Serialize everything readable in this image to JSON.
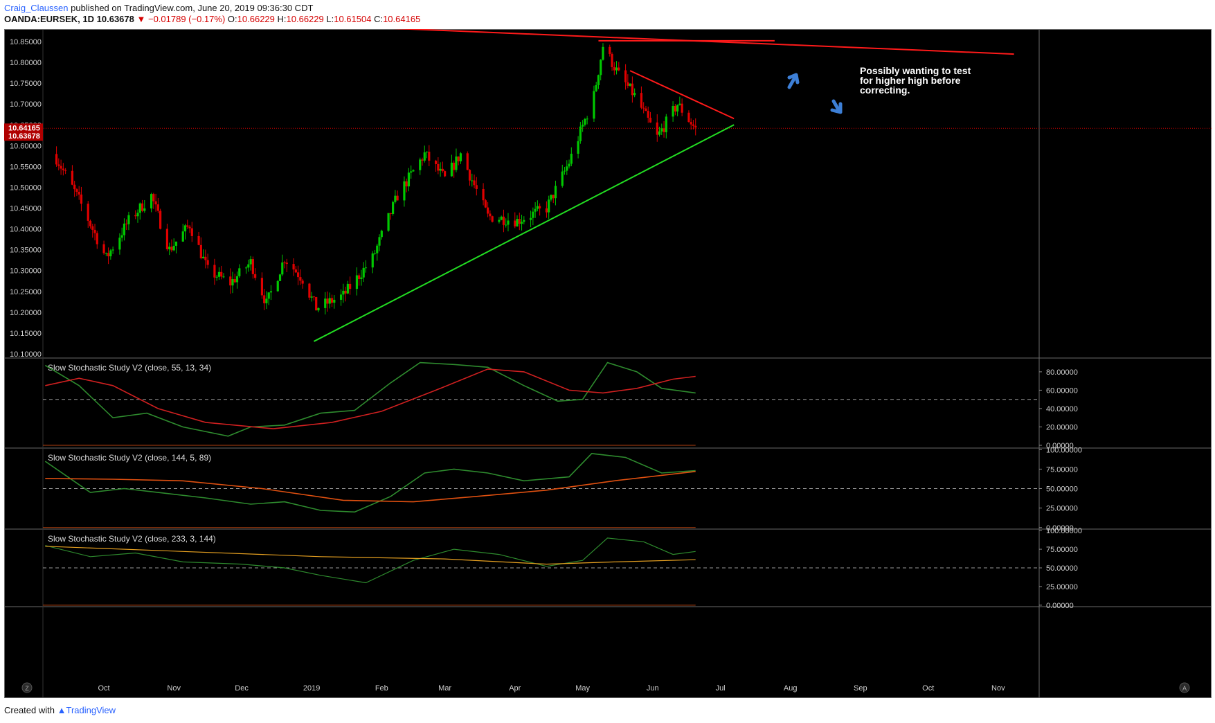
{
  "header": {
    "author": "Craig_Claussen",
    "published": "published on TradingView.com, June 20, 2019 09:36:30 CDT",
    "symbol": "OANDA:EURSEK, 1D",
    "last": "10.63678",
    "change": "▼ −0.01789 (−0.17%)",
    "o_label": "O:",
    "o": "10.66229",
    "h_label": "H:",
    "h": "10.66229",
    "l_label": "L:",
    "l": "10.61504",
    "c_label": "C:",
    "c": "10.64165"
  },
  "footer": {
    "created": "Created with",
    "brand": "TradingView"
  },
  "annotation": "Possibly wanting to test for higher high before correcting.",
  "colors": {
    "background": "#000000",
    "up": "#00c800",
    "down": "#e00000",
    "trend_support": "#22dd22",
    "trend_resistance": "#ff1a1a",
    "price_line": "#cc0000",
    "arrow": "#3d7fd6",
    "stoch_k": "#2e8b2e",
    "stoch_d": "#d02020",
    "stoch_d3": "#e6a020"
  },
  "chart_data": [
    {
      "type": "candlestick",
      "symbol": "OANDA:EURSEK",
      "interval": "1D",
      "x_labels": [
        "Oct",
        "Nov",
        "Dec",
        "2019",
        "Feb",
        "Mar",
        "Apr",
        "May",
        "Jun",
        "Jul",
        "Aug",
        "Sep",
        "Oct",
        "Nov"
      ],
      "y_ticks": [
        "10.10000",
        "10.15000",
        "10.20000",
        "10.25000",
        "10.30000",
        "10.35000",
        "10.40000",
        "10.45000",
        "10.50000",
        "10.55000",
        "10.60000",
        "10.65000",
        "10.70000",
        "10.75000",
        "10.80000",
        "10.85000"
      ],
      "ylim": [
        10.09,
        10.88
      ],
      "price_labels": [
        "10.64165",
        "10.63678"
      ],
      "close_path": [
        {
          "date": "2018-09-10",
          "close": 10.57
        },
        {
          "date": "2018-09-20",
          "close": 10.47
        },
        {
          "date": "2018-10-02",
          "close": 10.33
        },
        {
          "date": "2018-10-12",
          "close": 10.42
        },
        {
          "date": "2018-10-22",
          "close": 10.48
        },
        {
          "date": "2018-10-30",
          "close": 10.35
        },
        {
          "date": "2018-11-08",
          "close": 10.41
        },
        {
          "date": "2018-11-16",
          "close": 10.3
        },
        {
          "date": "2018-11-26",
          "close": 10.27
        },
        {
          "date": "2018-12-05",
          "close": 10.32
        },
        {
          "date": "2018-12-12",
          "close": 10.22
        },
        {
          "date": "2018-12-20",
          "close": 10.33
        },
        {
          "date": "2018-12-28",
          "close": 10.28
        },
        {
          "date": "2019-01-03",
          "close": 10.21
        },
        {
          "date": "2019-01-15",
          "close": 10.24
        },
        {
          "date": "2019-01-28",
          "close": 10.33
        },
        {
          "date": "2019-02-08",
          "close": 10.48
        },
        {
          "date": "2019-02-20",
          "close": 10.58
        },
        {
          "date": "2019-03-01",
          "close": 10.52
        },
        {
          "date": "2019-03-08",
          "close": 10.58
        },
        {
          "date": "2019-03-20",
          "close": 10.43
        },
        {
          "date": "2019-04-02",
          "close": 10.42
        },
        {
          "date": "2019-04-15",
          "close": 10.45
        },
        {
          "date": "2019-04-25",
          "close": 10.56
        },
        {
          "date": "2019-05-06",
          "close": 10.72
        },
        {
          "date": "2019-05-10",
          "close": 10.84
        },
        {
          "date": "2019-05-17",
          "close": 10.77
        },
        {
          "date": "2019-05-24",
          "close": 10.72
        },
        {
          "date": "2019-06-03",
          "close": 10.62
        },
        {
          "date": "2019-06-12",
          "close": 10.7
        },
        {
          "date": "2019-06-20",
          "close": 10.64
        }
      ],
      "trendlines": [
        {
          "name": "support",
          "from": {
            "date": "2019-01-02",
            "value": 10.13
          },
          "to": {
            "date": "2019-07-07",
            "value": 10.65
          }
        },
        {
          "name": "resistance",
          "from": {
            "date": "2019-05-22",
            "value": 10.78
          },
          "to": {
            "date": "2019-07-07",
            "value": 10.665
          }
        },
        {
          "name": "long-resistance",
          "from": {
            "date": "2019-01-22",
            "value": 10.885
          },
          "to": {
            "date": "2019-11-08",
            "value": 10.82
          }
        },
        {
          "name": "top-horizontal",
          "from": {
            "date": "2019-05-08",
            "value": 10.852
          },
          "to": {
            "date": "2019-07-25",
            "value": 10.852
          }
        }
      ]
    },
    {
      "type": "line",
      "title": "Slow Stochastic Study V2 (close, 55, 13, 34)",
      "y_ticks": [
        "0.00000",
        "20.00000",
        "40.00000",
        "60.00000",
        "80.00000"
      ],
      "ylim": [
        -3,
        95
      ],
      "midline": 50,
      "series": [
        {
          "role": "k",
          "points": [
            [
              "2018-09-05",
              87
            ],
            [
              "2018-09-20",
              65
            ],
            [
              "2018-10-05",
              30
            ],
            [
              "2018-10-20",
              35
            ],
            [
              "2018-11-05",
              20
            ],
            [
              "2018-11-25",
              10
            ],
            [
              "2018-12-05",
              20
            ],
            [
              "2018-12-20",
              22
            ],
            [
              "2019-01-05",
              35
            ],
            [
              "2019-01-20",
              38
            ],
            [
              "2019-02-05",
              68
            ],
            [
              "2019-02-18",
              90
            ],
            [
              "2019-03-05",
              88
            ],
            [
              "2019-03-20",
              85
            ],
            [
              "2019-04-05",
              65
            ],
            [
              "2019-04-20",
              48
            ],
            [
              "2019-05-01",
              50
            ],
            [
              "2019-05-12",
              90
            ],
            [
              "2019-05-25",
              80
            ],
            [
              "2019-06-05",
              62
            ],
            [
              "2019-06-20",
              57
            ]
          ]
        },
        {
          "role": "d",
          "points": [
            [
              "2018-09-05",
              65
            ],
            [
              "2018-09-20",
              73
            ],
            [
              "2018-10-05",
              65
            ],
            [
              "2018-10-25",
              40
            ],
            [
              "2018-11-15",
              25
            ],
            [
              "2018-12-15",
              18
            ],
            [
              "2019-01-10",
              25
            ],
            [
              "2019-02-01",
              37
            ],
            [
              "2019-02-25",
              60
            ],
            [
              "2019-03-20",
              83
            ],
            [
              "2019-04-05",
              80
            ],
            [
              "2019-04-25",
              60
            ],
            [
              "2019-05-10",
              57
            ],
            [
              "2019-05-25",
              62
            ],
            [
              "2019-06-10",
              72
            ],
            [
              "2019-06-20",
              75
            ]
          ]
        }
      ]
    },
    {
      "type": "line",
      "title": "Slow Stochastic Study V2 (close, 144, 5, 89)",
      "y_ticks": [
        "0.00000",
        "25.00000",
        "50.00000",
        "75.00000",
        "100.00000"
      ],
      "ylim": [
        -2,
        102
      ],
      "midline": 50,
      "series": [
        {
          "role": "k",
          "points": [
            [
              "2018-09-05",
              85
            ],
            [
              "2018-09-25",
              45
            ],
            [
              "2018-10-10",
              50
            ],
            [
              "2018-10-25",
              45
            ],
            [
              "2018-11-15",
              38
            ],
            [
              "2018-12-05",
              30
            ],
            [
              "2018-12-20",
              33
            ],
            [
              "2019-01-05",
              22
            ],
            [
              "2019-01-20",
              20
            ],
            [
              "2019-02-05",
              40
            ],
            [
              "2019-02-20",
              70
            ],
            [
              "2019-03-05",
              75
            ],
            [
              "2019-03-20",
              70
            ],
            [
              "2019-04-05",
              60
            ],
            [
              "2019-04-25",
              65
            ],
            [
              "2019-05-05",
              95
            ],
            [
              "2019-05-20",
              90
            ],
            [
              "2019-06-05",
              70
            ],
            [
              "2019-06-20",
              73
            ]
          ]
        },
        {
          "role": "d",
          "points": [
            [
              "2018-09-05",
              63
            ],
            [
              "2018-10-05",
              62
            ],
            [
              "2018-11-05",
              60
            ],
            [
              "2018-12-10",
              50
            ],
            [
              "2019-01-15",
              35
            ],
            [
              "2019-02-15",
              33
            ],
            [
              "2019-03-15",
              40
            ],
            [
              "2019-04-15",
              48
            ],
            [
              "2019-05-15",
              60
            ],
            [
              "2019-06-20",
              72
            ]
          ]
        }
      ]
    },
    {
      "type": "line",
      "title": "Slow Stochastic Study V2 (close, 233, 3, 144)",
      "y_ticks": [
        "0.00000",
        "25.00000",
        "50.00000",
        "75.00000",
        "100.00000"
      ],
      "ylim": [
        -2,
        102
      ],
      "midline": 50,
      "series": [
        {
          "role": "k",
          "points": [
            [
              "2018-09-05",
              80
            ],
            [
              "2018-09-25",
              65
            ],
            [
              "2018-10-15",
              70
            ],
            [
              "2018-11-05",
              58
            ],
            [
              "2018-12-01",
              55
            ],
            [
              "2018-12-20",
              50
            ],
            [
              "2019-01-05",
              40
            ],
            [
              "2019-01-25",
              30
            ],
            [
              "2019-02-15",
              60
            ],
            [
              "2019-03-05",
              75
            ],
            [
              "2019-03-25",
              68
            ],
            [
              "2019-04-15",
              52
            ],
            [
              "2019-05-01",
              60
            ],
            [
              "2019-05-12",
              90
            ],
            [
              "2019-05-28",
              85
            ],
            [
              "2019-06-10",
              68
            ],
            [
              "2019-06-20",
              72
            ]
          ]
        },
        {
          "role": "d",
          "points": [
            [
              "2018-09-05",
              79
            ],
            [
              "2018-11-05",
              72
            ],
            [
              "2019-01-05",
              65
            ],
            [
              "2019-03-01",
              62
            ],
            [
              "2019-04-15",
              55
            ],
            [
              "2019-05-15",
              58
            ],
            [
              "2019-06-20",
              61
            ]
          ]
        }
      ]
    }
  ]
}
